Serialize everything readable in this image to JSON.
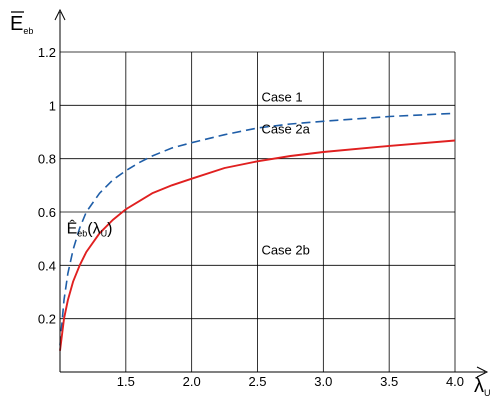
{
  "chart_data": {
    "type": "line",
    "xlim": [
      1.0,
      4.0
    ],
    "ylim": [
      0,
      1.2
    ],
    "x_ticks": [
      "1.5",
      "2.0",
      "2.5",
      "3.0",
      "3.5",
      "4.0"
    ],
    "x_tick_values": [
      1.5,
      2.0,
      2.5,
      3.0,
      3.5,
      4.0
    ],
    "y_ticks": [
      "0.2",
      "0.4",
      "0.6",
      "0.8",
      "1",
      "1.2"
    ],
    "y_tick_values": [
      0.2,
      0.4,
      0.6,
      0.8,
      1.0,
      1.2
    ],
    "grid": true,
    "xlabel": {
      "main": "λ",
      "sub": "U"
    },
    "ylabel": {
      "main": "E",
      "sub": "eb"
    },
    "series": [
      {
        "style": "dashed",
        "color": "#1f5ea8",
        "x": [
          1.0,
          1.03,
          1.06,
          1.1,
          1.15,
          1.2,
          1.3,
          1.4,
          1.5,
          1.6,
          1.7,
          1.85,
          2.0,
          2.25,
          2.5,
          2.75,
          3.0,
          3.5,
          4.0
        ],
        "y": [
          0.1,
          0.27,
          0.37,
          0.46,
          0.54,
          0.6,
          0.67,
          0.72,
          0.755,
          0.785,
          0.81,
          0.84,
          0.86,
          0.89,
          0.915,
          0.93,
          0.94,
          0.958,
          0.97
        ]
      },
      {
        "style": "solid",
        "color": "#e02020",
        "x": [
          1.0,
          1.03,
          1.06,
          1.1,
          1.15,
          1.2,
          1.3,
          1.4,
          1.5,
          1.6,
          1.7,
          1.85,
          2.0,
          2.25,
          2.5,
          2.75,
          3.0,
          3.5,
          4.0
        ],
        "y": [
          0.08,
          0.2,
          0.27,
          0.34,
          0.4,
          0.45,
          0.52,
          0.57,
          0.61,
          0.64,
          0.67,
          0.7,
          0.725,
          0.765,
          0.79,
          0.81,
          0.825,
          0.848,
          0.868
        ]
      }
    ],
    "annotations": [
      {
        "id": "case1",
        "text": "Case 1",
        "x": 2.53,
        "y": 1.015
      },
      {
        "id": "case2a",
        "text": "Case 2a",
        "x": 2.53,
        "y": 0.895
      },
      {
        "id": "case2b",
        "text": "Case 2b",
        "x": 2.53,
        "y": 0.44
      }
    ],
    "curve_label": {
      "main": "Ê",
      "sub": "eb",
      "arg_open": "(λ",
      "arg_sub": "U",
      "arg_close": ")",
      "x": 1.05,
      "y": 0.52
    }
  }
}
